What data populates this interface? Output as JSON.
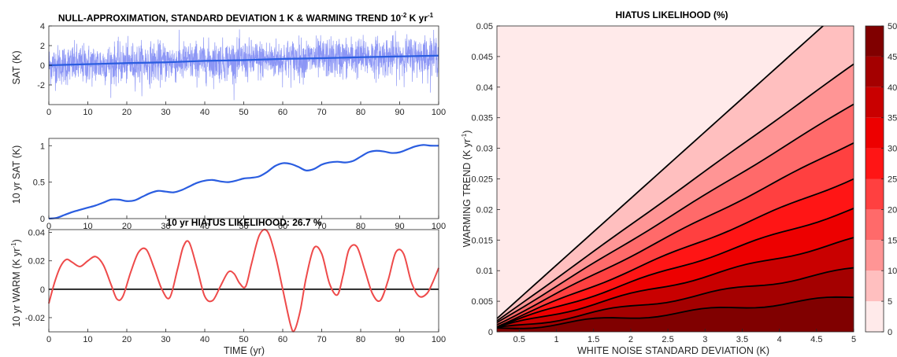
{
  "chart_data": [
    {
      "type": "line",
      "title_pre": "NULL-APPROXIMATION, STANDARD DEVIATION 1 K & WARMING TREND 10",
      "title_sup": "-2",
      "title_post": " K yr",
      "title_sup2": "-1",
      "xlabel": "",
      "ylabel": "SAT (K)",
      "xlim": [
        0,
        100
      ],
      "ylim": [
        -4,
        4
      ],
      "xticks": [
        0,
        10,
        20,
        30,
        40,
        50,
        60,
        70,
        80,
        90,
        100
      ],
      "yticks": [
        -2,
        0,
        2,
        4
      ],
      "series": [
        {
          "role": "noise",
          "color": "#8c96f5",
          "sigma": 1,
          "trend_per_yr": 0.01
        },
        {
          "role": "trend",
          "color": "#2a5de0",
          "x": [
            0,
            10,
            20,
            30,
            40,
            50,
            60,
            70,
            80,
            90,
            100
          ],
          "y": [
            0,
            0.11,
            0.22,
            0.3,
            0.45,
            0.52,
            0.65,
            0.72,
            0.82,
            0.9,
            0.98
          ]
        }
      ]
    },
    {
      "type": "line",
      "title": "",
      "xlabel": "",
      "ylabel": "10 yr SAT (K)",
      "xlim": [
        0,
        100
      ],
      "ylim": [
        0,
        1.1
      ],
      "xticks": [
        0,
        10,
        20,
        30,
        40,
        50,
        60,
        70,
        80,
        90,
        100
      ],
      "yticks": [
        0,
        0.5,
        1
      ],
      "series": [
        {
          "color": "#2a5de0",
          "x": [
            0,
            2,
            4,
            6,
            8,
            10,
            12,
            14,
            16,
            18,
            20,
            22,
            24,
            26,
            28,
            30,
            32,
            34,
            36,
            38,
            40,
            42,
            44,
            46,
            48,
            50,
            52,
            54,
            56,
            58,
            60,
            62,
            64,
            66,
            68,
            70,
            72,
            74,
            76,
            78,
            80,
            82,
            84,
            86,
            88,
            90,
            92,
            94,
            96,
            98,
            100
          ],
          "y": [
            0,
            0.01,
            0.05,
            0.09,
            0.12,
            0.15,
            0.18,
            0.22,
            0.26,
            0.26,
            0.24,
            0.25,
            0.3,
            0.35,
            0.38,
            0.37,
            0.36,
            0.39,
            0.44,
            0.49,
            0.52,
            0.53,
            0.51,
            0.5,
            0.52,
            0.55,
            0.56,
            0.58,
            0.64,
            0.72,
            0.76,
            0.75,
            0.71,
            0.66,
            0.68,
            0.74,
            0.77,
            0.78,
            0.77,
            0.79,
            0.85,
            0.91,
            0.93,
            0.92,
            0.9,
            0.91,
            0.95,
            0.99,
            1.01,
            1.0,
            1.0
          ]
        }
      ]
    },
    {
      "type": "line",
      "title": "10 yr HIATUS LIKELIHOOD: 26.7 %",
      "xlabel": "TIME (yr)",
      "ylabel_pre": "10 yr WARM (K yr",
      "ylabel_sup": "-1",
      "ylabel_post": ")",
      "xlim": [
        0,
        100
      ],
      "ylim": [
        -0.03,
        0.042
      ],
      "xticks": [
        0,
        10,
        20,
        30,
        40,
        50,
        60,
        70,
        80,
        90,
        100
      ],
      "yticks": [
        -0.02,
        0,
        0.02,
        0.04
      ],
      "zero_line": true,
      "series": [
        {
          "color": "#ee4a4a",
          "x": [
            0,
            1.5,
            3,
            4.5,
            6,
            8,
            10,
            12,
            14,
            16,
            17.5,
            19,
            21,
            23,
            25,
            27,
            29,
            31,
            33,
            34.5,
            36,
            38,
            40,
            42,
            44,
            46,
            47.5,
            49,
            50.5,
            52,
            54,
            56,
            58,
            60,
            62,
            63,
            64.5,
            66,
            68,
            70,
            72,
            74,
            75.5,
            77,
            79,
            81,
            83,
            85,
            87,
            89,
            91,
            93,
            95,
            97,
            98.5,
            100
          ],
          "y": [
            -0.01,
            0.005,
            0.016,
            0.021,
            0.019,
            0.016,
            0.02,
            0.023,
            0.017,
            0.003,
            -0.007,
            -0.005,
            0.012,
            0.026,
            0.028,
            0.015,
            0.0,
            -0.006,
            0.014,
            0.03,
            0.033,
            0.015,
            -0.005,
            -0.008,
            0.002,
            0.012,
            0.011,
            0.004,
            0.002,
            0.018,
            0.038,
            0.041,
            0.025,
            0.0,
            -0.025,
            -0.029,
            -0.015,
            0.008,
            0.029,
            0.025,
            0.004,
            -0.004,
            0.01,
            0.028,
            0.03,
            0.014,
            -0.003,
            -0.008,
            0.006,
            0.026,
            0.025,
            0.005,
            -0.005,
            -0.003,
            0.005,
            0.015
          ]
        }
      ]
    },
    {
      "type": "heatmap",
      "title": "HIATUS LIKELIHOOD (%)",
      "xlabel": "WHITE NOISE STANDARD DEVIATION (K)",
      "ylabel_pre": "WARMING TREND (K yr",
      "ylabel_sup": "-1",
      "ylabel_post": ")",
      "xlim": [
        0.2,
        5
      ],
      "ylim": [
        0,
        0.05
      ],
      "xticks": [
        "0.5",
        "1",
        "1.5",
        "2",
        "2.5",
        "3",
        "3.5",
        "4",
        "4.5",
        "5"
      ],
      "yticks": [
        "0",
        "0.005",
        "0.01",
        "0.015",
        "0.02",
        "0.025",
        "0.03",
        "0.035",
        "0.04",
        "0.045",
        "0.05"
      ],
      "contour_levels": [
        5,
        10,
        15,
        20,
        25,
        30,
        35,
        40,
        45
      ],
      "colorbar": {
        "range": [
          0,
          50
        ],
        "ticks": [
          "0",
          "5",
          "10",
          "15",
          "20",
          "25",
          "30",
          "35",
          "40",
          "45",
          "50"
        ],
        "colors": [
          "#ffffff",
          "#ff0000",
          "#6e0000"
        ]
      },
      "contour_slopes": [
        0.0109,
        0.00875,
        0.00745,
        0.0062,
        0.00502,
        0.00402,
        0.00303,
        0.00205,
        0.0011
      ]
    }
  ]
}
